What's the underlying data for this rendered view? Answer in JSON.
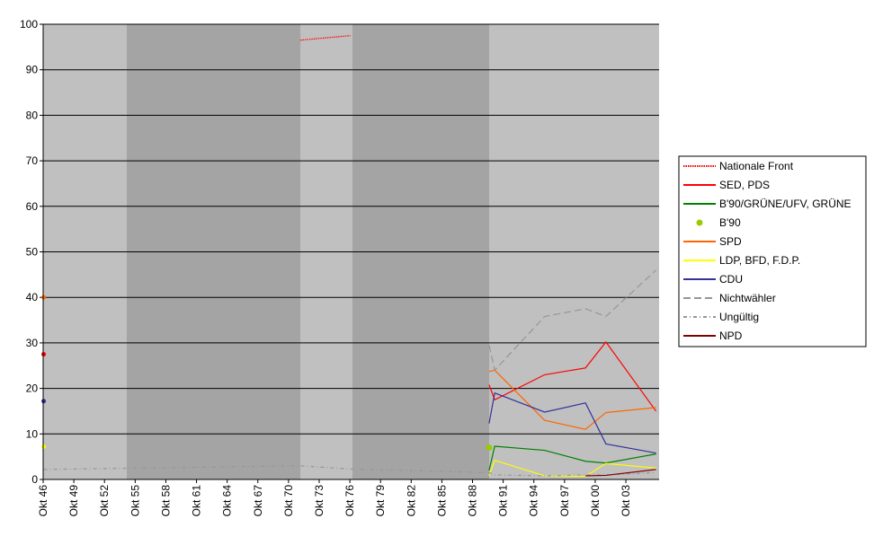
{
  "chart_data": {
    "type": "line",
    "x": [
      1946.8,
      1971.9,
      1976.8,
      1990.37,
      1990.92,
      1995.8,
      1999.8,
      2001.8,
      2006.7
    ],
    "xlim": [
      1946.75,
      2007.0
    ],
    "xticks": [
      {
        "value": 1946.75,
        "label": "Okt 46"
      },
      {
        "value": 1949.75,
        "label": "Okt 49"
      },
      {
        "value": 1952.75,
        "label": "Okt 52"
      },
      {
        "value": 1955.75,
        "label": "Okt 55"
      },
      {
        "value": 1958.75,
        "label": "Okt 58"
      },
      {
        "value": 1961.75,
        "label": "Okt 61"
      },
      {
        "value": 1964.75,
        "label": "Okt 64"
      },
      {
        "value": 1967.75,
        "label": "Okt 67"
      },
      {
        "value": 1970.75,
        "label": "Okt 70"
      },
      {
        "value": 1973.75,
        "label": "Okt 73"
      },
      {
        "value": 1976.75,
        "label": "Okt 76"
      },
      {
        "value": 1979.75,
        "label": "Okt 79"
      },
      {
        "value": 1982.75,
        "label": "Okt 82"
      },
      {
        "value": 1985.75,
        "label": "Okt 85"
      },
      {
        "value": 1988.75,
        "label": "Okt 88"
      },
      {
        "value": 1991.75,
        "label": "Okt 91"
      },
      {
        "value": 1994.75,
        "label": "Okt 94"
      },
      {
        "value": 1997.75,
        "label": "Okt 97"
      },
      {
        "value": 2000.75,
        "label": "Okt 00"
      },
      {
        "value": 2003.75,
        "label": "Okt 03"
      }
    ],
    "ylim": [
      0,
      100
    ],
    "yticks": [
      0,
      10,
      20,
      30,
      40,
      50,
      60,
      70,
      80,
      90,
      100
    ],
    "grid": true,
    "legend": "right",
    "series": [
      {
        "name": "Nationale Front",
        "color": "#ff0000",
        "style": "dotted",
        "values": [
          null,
          96.5,
          97.5,
          null,
          null,
          null,
          null,
          null,
          null
        ]
      },
      {
        "name": "SED, PDS",
        "color": "#ff0000",
        "style": "solid",
        "values": [
          27.5,
          null,
          null,
          20.8,
          17.5,
          23,
          24.5,
          30.2,
          15
        ]
      },
      {
        "name": "B'90/GRÜNE/UFV, GRÜNE",
        "color": "#008000",
        "style": "solid",
        "values": [
          null,
          null,
          null,
          2,
          7.3,
          6.4,
          4,
          3.6,
          5.6
        ]
      },
      {
        "name": "B'90",
        "color": "#99cc00",
        "style": "marker",
        "values": [
          null,
          null,
          null,
          7,
          null,
          null,
          null,
          null,
          null
        ]
      },
      {
        "name": "SPD",
        "color": "#ff6600",
        "style": "solid",
        "values": [
          40,
          null,
          null,
          23.7,
          24,
          13,
          11,
          14.7,
          15.8
        ]
      },
      {
        "name": "LDP, BFD, F.D.P.",
        "color": "#ffff00",
        "style": "solid",
        "values": [
          7.2,
          null,
          null,
          0.8,
          4.2,
          0.8,
          0.7,
          3.5,
          2.5
        ]
      },
      {
        "name": "CDU",
        "color": "#333399",
        "style": "solid",
        "values": [
          17.2,
          null,
          null,
          12.3,
          19,
          14.8,
          16.8,
          7.8,
          5.8
        ]
      },
      {
        "name": "Nichtwähler",
        "color": "#969696",
        "style": "dash",
        "values": [
          null,
          null,
          null,
          29.5,
          24,
          35.8,
          37.5,
          35.8,
          46
        ]
      },
      {
        "name": "Ungültig",
        "color": "#969696",
        "style": "dashdot",
        "values": [
          2.2,
          3,
          2.3,
          1.5,
          1,
          0.8,
          1,
          1,
          1.5
        ]
      },
      {
        "name": "NPD",
        "color": "#800000",
        "style": "solid",
        "values": [
          null,
          null,
          null,
          null,
          null,
          null,
          0.8,
          0.9,
          2.2
        ]
      }
    ]
  }
}
